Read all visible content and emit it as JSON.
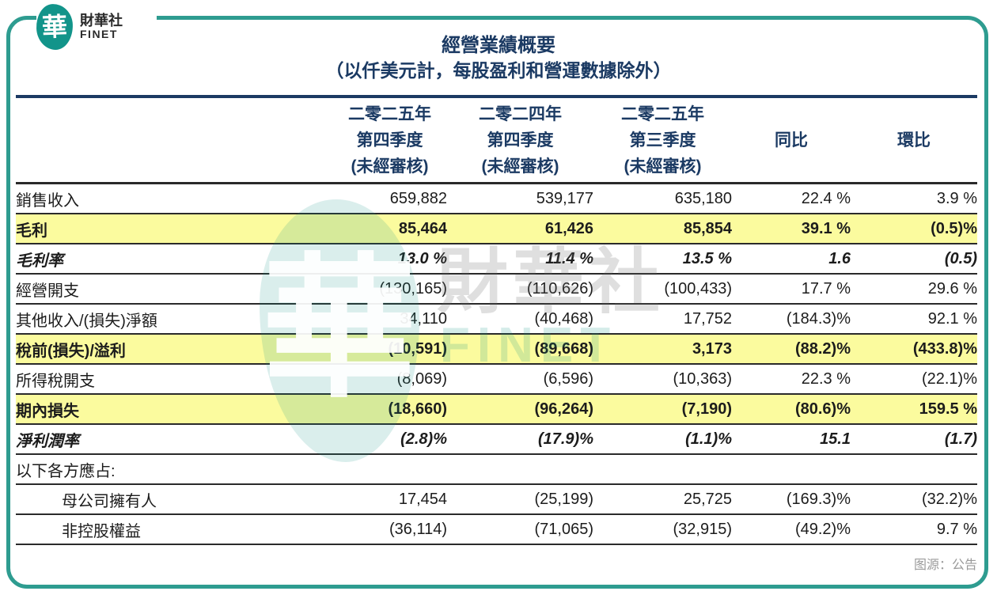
{
  "brand": {
    "logo_char": "華",
    "name_zh": "財華社",
    "name_en": "FINET"
  },
  "header": {
    "title": "經營業績概要",
    "subtitle": "（以仟美元計，每股盈利和營運數據除外）"
  },
  "table": {
    "col_headers": [
      {
        "lines": [
          "二零二五年",
          "第四季度",
          "(未經審核)"
        ]
      },
      {
        "lines": [
          "二零二四年",
          "第四季度",
          "(未經審核)"
        ]
      },
      {
        "lines": [
          "二零二五年",
          "第三季度",
          "(未經審核)"
        ]
      },
      {
        "lines": [
          "同比"
        ]
      },
      {
        "lines": [
          "環比"
        ]
      }
    ],
    "rows": [
      {
        "label": "銷售收入",
        "style": "normal",
        "values": [
          "659,882",
          "539,177",
          "635,180",
          "22.4 %",
          "3.9 %"
        ]
      },
      {
        "label": "毛利",
        "style": "highlight",
        "values": [
          "85,464",
          "61,426",
          "85,854",
          "39.1 %",
          "(0.5)%"
        ]
      },
      {
        "label": "毛利率",
        "style": "italic",
        "values": [
          "13.0 %",
          "11.4 %",
          "13.5 %",
          "1.6",
          "(0.5)"
        ]
      },
      {
        "label": "經營開支",
        "style": "normal",
        "values": [
          "(130,165)",
          "(110,626)",
          "(100,433)",
          "17.7 %",
          "29.6 %"
        ]
      },
      {
        "label": "其他收入/(損失)淨額",
        "style": "normal",
        "values": [
          "34,110",
          "(40,468)",
          "17,752",
          "(184.3)%",
          "92.1 %"
        ]
      },
      {
        "label": "稅前(損失)/溢利",
        "style": "highlight",
        "values": [
          "(10,591)",
          "(89,668)",
          "3,173",
          "(88.2)%",
          "(433.8)%"
        ]
      },
      {
        "label": "所得稅開支",
        "style": "normal",
        "values": [
          "(8,069)",
          "(6,596)",
          "(10,363)",
          "22.3 %",
          "(22.1)%"
        ]
      },
      {
        "label": "期內損失",
        "style": "highlight",
        "values": [
          "(18,660)",
          "(96,264)",
          "(7,190)",
          "(80.6)%",
          "159.5 %"
        ]
      },
      {
        "label": "淨利潤率",
        "style": "italic",
        "values": [
          "(2.8)%",
          "(17.9)%",
          "(1.1)%",
          "15.1",
          "(1.7)"
        ]
      },
      {
        "label": "以下各方應占:",
        "style": "section",
        "values": [
          "",
          "",
          "",
          "",
          ""
        ]
      },
      {
        "label": "母公司擁有人",
        "style": "indent",
        "values": [
          "17,454",
          "(25,199)",
          "25,725",
          "(169.3)%",
          "(32.2)%"
        ]
      },
      {
        "label": "非控股權益",
        "style": "indent",
        "values": [
          "(36,114)",
          "(71,065)",
          "(32,915)",
          "(49.2)%",
          "9.7 %"
        ]
      }
    ]
  },
  "watermark": {
    "logo_char": "華",
    "text_zh": "財華社",
    "text_en": "FINET"
  },
  "source_note": "图源：公告",
  "colors": {
    "navy_text": "#1B3A63",
    "highlight_yellow": "#FBFB9E",
    "frame_teal": "#2E9C90",
    "logo_teal": "#12948A",
    "row_line": "#2a2a2a",
    "source_gray": "#9a9a9a"
  }
}
